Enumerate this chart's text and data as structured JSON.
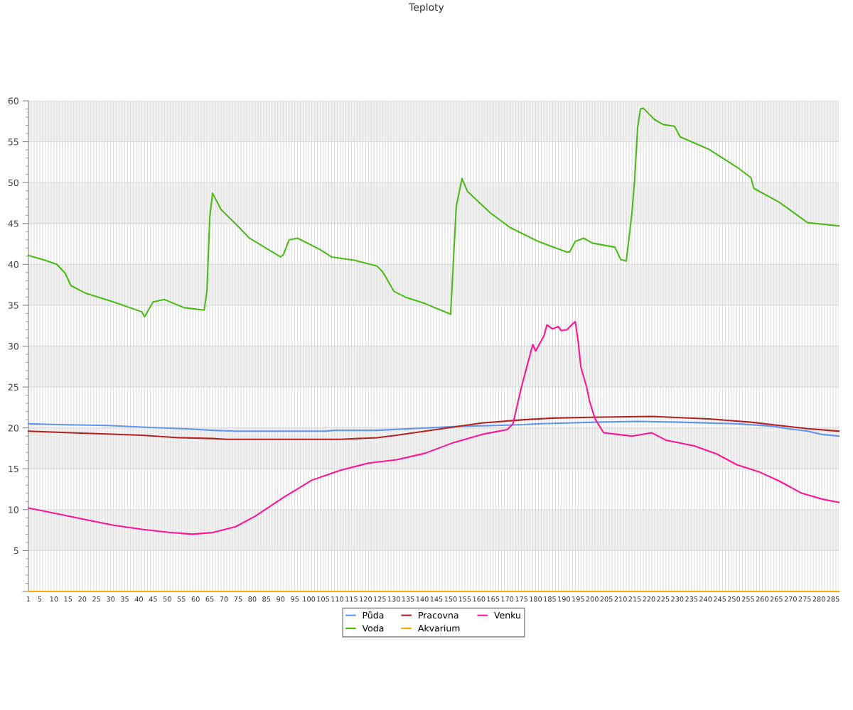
{
  "chart_data": {
    "type": "line",
    "title": "Teploty",
    "xlim": [
      1,
      287
    ],
    "xticks": [
      1,
      {
        "value": 2,
        "label": null
      },
      {
        "value": 3,
        "label": null
      },
      {
        "value": 4,
        "label": null
      },
      5,
      {
        "value": 6,
        "label": null
      },
      {
        "value": 7,
        "label": null
      },
      {
        "value": 8,
        "label": null
      },
      {
        "value": 9,
        "label": null
      },
      10,
      {
        "value": 11,
        "label": null
      },
      {
        "value": 12,
        "label": null
      },
      {
        "value": 13,
        "label": null
      },
      {
        "value": 14,
        "label": null
      },
      15,
      {
        "value": 16,
        "label": null
      },
      {
        "value": 17,
        "label": null
      },
      {
        "value": 18,
        "label": null
      },
      {
        "value": 19,
        "label": null
      },
      20,
      {
        "value": 21,
        "label": null
      },
      {
        "value": 22,
        "label": null
      },
      {
        "value": 23,
        "label": null
      },
      {
        "value": 24,
        "label": null
      },
      25,
      {
        "value": 26,
        "label": null
      },
      {
        "value": 27,
        "label": null
      },
      {
        "value": 28,
        "label": null
      },
      {
        "value": 29,
        "label": null
      },
      30,
      {
        "value": 31,
        "label": null
      },
      {
        "value": 32,
        "label": null
      },
      {
        "value": 33,
        "label": null
      },
      {
        "value": 34,
        "label": null
      },
      35,
      {
        "value": 36,
        "label": null
      },
      {
        "value": 37,
        "label": null
      },
      {
        "value": 38,
        "label": null
      },
      {
        "value": 39,
        "label": null
      },
      40,
      {
        "value": 41,
        "label": null
      },
      {
        "value": 42,
        "label": null
      },
      {
        "value": 43,
        "label": null
      },
      {
        "value": 44,
        "label": null
      },
      45,
      {
        "value": 46,
        "label": null
      },
      {
        "value": 47,
        "label": null
      },
      {
        "value": 48,
        "label": null
      },
      {
        "value": 49,
        "label": null
      },
      50,
      {
        "value": 51,
        "label": null
      },
      {
        "value": 52,
        "label": null
      },
      {
        "value": 53,
        "label": null
      },
      {
        "value": 54,
        "label": null
      },
      55,
      {
        "value": 56,
        "label": null
      },
      {
        "value": 57,
        "label": null
      },
      {
        "value": 58,
        "label": null
      },
      {
        "value": 59,
        "label": null
      },
      60,
      {
        "value": 61,
        "label": null
      },
      {
        "value": 62,
        "label": null
      },
      {
        "value": 63,
        "label": null
      },
      {
        "value": 64,
        "label": null
      },
      65,
      {
        "value": 66,
        "label": null
      },
      {
        "value": 67,
        "label": null
      },
      {
        "value": 68,
        "label": null
      },
      {
        "value": 69,
        "label": null
      },
      70,
      {
        "value": 71,
        "label": null
      },
      {
        "value": 72,
        "label": null
      },
      {
        "value": 73,
        "label": null
      },
      {
        "value": 74,
        "label": null
      },
      75,
      {
        "value": 76,
        "label": null
      },
      {
        "value": 77,
        "label": null
      },
      {
        "value": 78,
        "label": null
      },
      {
        "value": 79,
        "label": null
      },
      80,
      {
        "value": 81,
        "label": null
      },
      {
        "value": 82,
        "label": null
      },
      {
        "value": 83,
        "label": null
      },
      {
        "value": 84,
        "label": null
      },
      85,
      {
        "value": 86,
        "label": null
      },
      {
        "value": 87,
        "label": null
      },
      {
        "value": 88,
        "label": null
      },
      {
        "value": 89,
        "label": null
      },
      90,
      {
        "value": 91,
        "label": null
      },
      {
        "value": 92,
        "label": null
      },
      {
        "value": 93,
        "label": null
      },
      {
        "value": 94,
        "label": null
      },
      95,
      {
        "value": 96,
        "label": null
      },
      {
        "value": 97,
        "label": null
      },
      {
        "value": 98,
        "label": null
      },
      {
        "value": 99,
        "label": null
      },
      100,
      {
        "value": 101,
        "label": null
      },
      {
        "value": 102,
        "label": null
      },
      {
        "value": 103,
        "label": null
      },
      {
        "value": 104,
        "label": null
      },
      105,
      {
        "value": 106,
        "label": null
      },
      {
        "value": 107,
        "label": null
      },
      {
        "value": 108,
        "label": null
      },
      {
        "value": 109,
        "label": null
      },
      110,
      {
        "value": 111,
        "label": null
      },
      {
        "value": 112,
        "label": null
      },
      {
        "value": 113,
        "label": null
      },
      {
        "value": 114,
        "label": null
      },
      115,
      {
        "value": 116,
        "label": null
      },
      {
        "value": 117,
        "label": null
      },
      {
        "value": 118,
        "label": null
      },
      {
        "value": 119,
        "label": null
      },
      120,
      {
        "value": 121,
        "label": null
      },
      {
        "value": 122,
        "label": null
      },
      {
        "value": 123,
        "label": null
      },
      {
        "value": 124,
        "label": null
      },
      125,
      {
        "value": 126,
        "label": null
      },
      {
        "value": 127,
        "label": null
      },
      {
        "value": 128,
        "label": null
      },
      {
        "value": 129,
        "label": null
      },
      130,
      {
        "value": 131,
        "label": null
      },
      {
        "value": 132,
        "label": null
      },
      {
        "value": 133,
        "label": null
      },
      {
        "value": 134,
        "label": null
      },
      135,
      {
        "value": 136,
        "label": null
      },
      {
        "value": 137,
        "label": null
      },
      {
        "value": 138,
        "label": null
      },
      {
        "value": 139,
        "label": null
      },
      140,
      {
        "value": 141,
        "label": null
      },
      {
        "value": 142,
        "label": null
      },
      {
        "value": 143,
        "label": null
      },
      {
        "value": 144,
        "label": null
      },
      145,
      {
        "value": 146,
        "label": null
      },
      {
        "value": 147,
        "label": null
      },
      {
        "value": 148,
        "label": null
      },
      {
        "value": 149,
        "label": null
      },
      150,
      {
        "value": 151,
        "label": null
      },
      {
        "value": 152,
        "label": null
      },
      {
        "value": 153,
        "label": null
      },
      {
        "value": 154,
        "label": null
      },
      155,
      {
        "value": 156,
        "label": null
      },
      {
        "value": 157,
        "label": null
      },
      {
        "value": 158,
        "label": null
      },
      {
        "value": 159,
        "label": null
      },
      160,
      {
        "value": 161,
        "label": null
      },
      {
        "value": 162,
        "label": null
      },
      {
        "value": 163,
        "label": null
      },
      {
        "value": 164,
        "label": null
      },
      165,
      {
        "value": 166,
        "label": null
      },
      {
        "value": 167,
        "label": null
      },
      {
        "value": 168,
        "label": null
      },
      {
        "value": 169,
        "label": null
      },
      170,
      {
        "value": 171,
        "label": null
      },
      {
        "value": 172,
        "label": null
      },
      {
        "value": 173,
        "label": null
      },
      {
        "value": 174,
        "label": null
      },
      175,
      {
        "value": 176,
        "label": null
      },
      {
        "value": 177,
        "label": null
      },
      {
        "value": 178,
        "label": null
      },
      {
        "value": 179,
        "label": null
      },
      180,
      {
        "value": 181,
        "label": null
      },
      {
        "value": 182,
        "label": null
      },
      {
        "value": 183,
        "label": null
      },
      {
        "value": 184,
        "label": null
      },
      185,
      {
        "value": 186,
        "label": null
      },
      {
        "value": 187,
        "label": null
      },
      {
        "value": 188,
        "label": null
      },
      {
        "value": 189,
        "label": null
      },
      190,
      {
        "value": 191,
        "label": null
      },
      {
        "value": 192,
        "label": null
      },
      {
        "value": 193,
        "label": null
      },
      {
        "value": 194,
        "label": null
      },
      195,
      {
        "value": 196,
        "label": null
      },
      {
        "value": 197,
        "label": null
      },
      {
        "value": 198,
        "label": null
      },
      {
        "value": 199,
        "label": null
      },
      200,
      {
        "value": 201,
        "label": null
      },
      {
        "value": 202,
        "label": null
      },
      {
        "value": 203,
        "label": null
      },
      {
        "value": 204,
        "label": null
      },
      205,
      {
        "value": 206,
        "label": null
      },
      {
        "value": 207,
        "label": null
      },
      {
        "value": 208,
        "label": null
      },
      {
        "value": 209,
        "label": null
      },
      210,
      {
        "value": 211,
        "label": null
      },
      {
        "value": 212,
        "label": null
      },
      {
        "value": 213,
        "label": null
      },
      {
        "value": 214,
        "label": null
      },
      215,
      {
        "value": 216,
        "label": null
      },
      {
        "value": 217,
        "label": null
      },
      {
        "value": 218,
        "label": null
      },
      {
        "value": 219,
        "label": null
      },
      220,
      {
        "value": 221,
        "label": null
      },
      {
        "value": 222,
        "label": null
      },
      {
        "value": 223,
        "label": null
      },
      {
        "value": 224,
        "label": null
      },
      225,
      {
        "value": 226,
        "label": null
      },
      {
        "value": 227,
        "label": null
      },
      {
        "value": 228,
        "label": null
      },
      {
        "value": 229,
        "label": null
      },
      230,
      {
        "value": 231,
        "label": null
      },
      {
        "value": 232,
        "label": null
      },
      {
        "value": 233,
        "label": null
      },
      {
        "value": 234,
        "label": null
      },
      235,
      {
        "value": 236,
        "label": null
      },
      {
        "value": 237,
        "label": null
      },
      {
        "value": 238,
        "label": null
      },
      {
        "value": 239,
        "label": null
      },
      240,
      {
        "value": 241,
        "label": null
      },
      {
        "value": 242,
        "label": null
      },
      {
        "value": 243,
        "label": null
      },
      {
        "value": 244,
        "label": null
      },
      245,
      {
        "value": 246,
        "label": null
      },
      {
        "value": 247,
        "label": null
      },
      {
        "value": 248,
        "label": null
      },
      {
        "value": 249,
        "label": null
      },
      250,
      {
        "value": 251,
        "label": null
      },
      {
        "value": 252,
        "label": null
      },
      {
        "value": 253,
        "label": null
      },
      {
        "value": 254,
        "label": null
      },
      255,
      {
        "value": 256,
        "label": null
      },
      {
        "value": 257,
        "label": null
      },
      {
        "value": 258,
        "label": null
      },
      {
        "value": 259,
        "label": null
      },
      260,
      {
        "value": 261,
        "label": null
      },
      {
        "value": 262,
        "label": null
      },
      {
        "value": 263,
        "label": null
      },
      {
        "value": 264,
        "label": null
      },
      265,
      {
        "value": 266,
        "label": null
      },
      {
        "value": 267,
        "label": null
      },
      {
        "value": 268,
        "label": null
      },
      {
        "value": 269,
        "label": null
      },
      270,
      {
        "value": 271,
        "label": null
      },
      {
        "value": 272,
        "label": null
      },
      {
        "value": 273,
        "label": null
      },
      {
        "value": 274,
        "label": null
      },
      275,
      {
        "value": 276,
        "label": null
      },
      {
        "value": 277,
        "label": null
      },
      {
        "value": 278,
        "label": null
      },
      {
        "value": 279,
        "label": null
      },
      280,
      {
        "value": 281,
        "label": null
      },
      {
        "value": 282,
        "label": null
      },
      {
        "value": 283,
        "label": null
      },
      {
        "value": 284,
        "label": null
      },
      285,
      {
        "value": 286,
        "label": null
      },
      {
        "value": 287,
        "label": null
      }
    ],
    "ylim": [
      0,
      60
    ],
    "yticks": [
      {
        "value": 0,
        "label": null
      },
      5,
      10,
      15,
      20,
      25,
      30,
      35,
      40,
      45,
      50,
      55,
      60
    ],
    "grid": true,
    "legend": "bottom",
    "marker": "none",
    "line_style": "solid",
    "bands": [
      {
        "axis": "y",
        "from": 5,
        "to": 10,
        "color": "#f2f2f2"
      },
      {
        "axis": "y",
        "from": 15,
        "to": 20,
        "color": "#f2f2f2"
      },
      {
        "axis": "y",
        "from": 25,
        "to": 30,
        "color": "#f2f2f2"
      },
      {
        "axis": "y",
        "from": 35,
        "to": 40,
        "color": "#f2f2f2"
      },
      {
        "axis": "y",
        "from": 45,
        "to": 50,
        "color": "#f2f2f2"
      },
      {
        "axis": "y",
        "from": 55,
        "to": 60,
        "color": "#f2f2f2"
      }
    ],
    "series": [
      {
        "name": "Půda",
        "color": "#6495ed",
        "x": [
          1,
          11,
          29,
          41,
          56,
          66,
          74,
          106,
          109,
          124,
          141,
          154,
          166,
          176,
          181,
          191,
          201,
          216,
          231,
          251,
          264,
          269,
          276,
          281,
          287
        ],
        "values": [
          20.5,
          20.4,
          20.3,
          20.1,
          19.9,
          19.7,
          19.6,
          19.6,
          19.7,
          19.7,
          20.0,
          20.2,
          20.3,
          20.4,
          20.5,
          20.6,
          20.7,
          20.8,
          20.7,
          20.5,
          20.2,
          19.9,
          19.6,
          19.2,
          19.0
        ]
      },
      {
        "name": "Voda",
        "color": "#4cbb17",
        "x": [
          1,
          6,
          11,
          14,
          16,
          21,
          31,
          41,
          42,
          45,
          49,
          56,
          63,
          64,
          65,
          66,
          69,
          74,
          79,
          90,
          91,
          93,
          96,
          104,
          108,
          116,
          124,
          126,
          130,
          134,
          141,
          150,
          152,
          154,
          156,
          164,
          171,
          181,
          191,
          192,
          194,
          197,
          200,
          208,
          210,
          212,
          214,
          215,
          216,
          217,
          218,
          222,
          225,
          229,
          231,
          241,
          251,
          256,
          257,
          266,
          276,
          287
        ],
        "values": [
          41.1,
          40.6,
          40.0,
          38.9,
          37.4,
          36.5,
          35.4,
          34.2,
          33.6,
          35.4,
          35.7,
          34.7,
          34.4,
          36.7,
          45.8,
          48.7,
          46.7,
          45.0,
          43.2,
          40.9,
          41.2,
          43.0,
          43.2,
          41.8,
          40.9,
          40.5,
          39.8,
          39.1,
          36.7,
          36.0,
          35.2,
          33.9,
          47.1,
          50.5,
          48.9,
          46.3,
          44.5,
          42.8,
          41.5,
          41.5,
          42.8,
          43.2,
          42.6,
          42.1,
          40.6,
          40.4,
          46.3,
          50.6,
          56.7,
          59.0,
          59.1,
          57.7,
          57.1,
          56.9,
          55.6,
          54.1,
          51.9,
          50.6,
          49.3,
          47.6,
          45.1,
          44.7
        ]
      },
      {
        "name": "Pracovna",
        "color": "#b22222",
        "x": [
          1,
          16,
          41,
          54,
          66,
          71,
          101,
          111,
          124,
          131,
          141,
          151,
          161,
          176,
          186,
          199,
          221,
          241,
          256,
          266,
          276,
          287
        ],
        "values": [
          19.6,
          19.4,
          19.1,
          18.8,
          18.7,
          18.6,
          18.6,
          18.6,
          18.8,
          19.1,
          19.6,
          20.1,
          20.6,
          21.0,
          21.2,
          21.3,
          21.4,
          21.1,
          20.7,
          20.3,
          19.9,
          19.6
        ]
      },
      {
        "name": "Akvarium",
        "color": "#ffa500",
        "x": [
          1,
          287
        ],
        "values": [
          0,
          0
        ]
      },
      {
        "name": "Venku",
        "color": "#ff1493",
        "x": [
          1,
          11,
          21,
          31,
          41,
          51,
          59,
          66,
          74,
          81,
          91,
          101,
          111,
          121,
          131,
          141,
          151,
          161,
          170,
          172,
          175,
          177,
          179,
          180,
          183,
          184,
          186,
          188,
          189,
          191,
          193,
          194,
          195,
          196,
          198,
          199,
          201,
          204,
          209,
          214,
          221,
          226,
          236,
          244,
          251,
          259,
          266,
          274,
          281,
          287
        ],
        "values": [
          10.2,
          9.5,
          8.8,
          8.1,
          7.6,
          7.2,
          7.0,
          7.2,
          7.9,
          9.2,
          11.5,
          13.6,
          14.8,
          15.7,
          16.1,
          16.9,
          18.2,
          19.2,
          19.8,
          20.5,
          25.0,
          27.6,
          30.2,
          29.4,
          31.3,
          32.6,
          32.1,
          32.4,
          31.9,
          32.0,
          32.7,
          33.0,
          30.6,
          27.4,
          25.0,
          23.3,
          21.1,
          19.4,
          19.2,
          19.0,
          19.4,
          18.5,
          17.8,
          16.8,
          15.5,
          14.6,
          13.5,
          12.0,
          11.3,
          10.9
        ]
      }
    ]
  }
}
